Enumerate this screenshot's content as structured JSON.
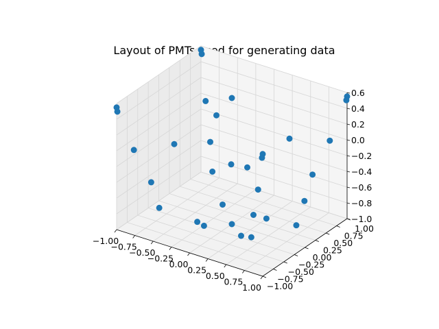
{
  "chart_data": {
    "type": "scatter",
    "projection": "3d",
    "title": "Layout of PMTs used for generating data",
    "xlabel": "",
    "ylabel": "",
    "zlabel": "",
    "xlim": [
      -1.0,
      1.0
    ],
    "ylim": [
      -1.0,
      1.0
    ],
    "zlim": [
      -1.0,
      0.6
    ],
    "grid": true,
    "x_ticks": [
      "−1.00",
      "−0.75",
      "−0.50",
      "−0.25",
      "0.00",
      "0.25",
      "0.50",
      "0.75",
      "1.00"
    ],
    "y_ticks": [
      "−1.00",
      "−0.75",
      "−0.50",
      "−0.25",
      "0.00",
      "0.25",
      "0.50",
      "0.75",
      "1.00"
    ],
    "z_ticks": [
      "−1.0",
      "−0.8",
      "−0.6",
      "−0.4",
      "−0.2",
      "0.0",
      "0.2",
      "0.4",
      "0.6"
    ],
    "x_tick_values": [
      -1.0,
      -0.75,
      -0.5,
      -0.25,
      0.0,
      0.25,
      0.5,
      0.75,
      1.0
    ],
    "y_tick_values": [
      -1.0,
      -0.75,
      -0.5,
      -0.25,
      0.0,
      0.25,
      0.5,
      0.75,
      1.0
    ],
    "z_tick_values": [
      -1.0,
      -0.8,
      -0.6,
      -0.4,
      -0.2,
      0.0,
      0.2,
      0.4,
      0.6
    ],
    "marker_color": "#1f77b4",
    "series": [
      {
        "points": [
          [
            -0.3,
            -0.3,
            -0.95
          ],
          [
            0.3,
            -0.3,
            -0.95
          ],
          [
            -0.3,
            0.3,
            -0.95
          ],
          [
            0.3,
            0.3,
            -0.95
          ],
          [
            -0.63,
            -0.63,
            -0.75
          ],
          [
            0.63,
            -0.63,
            -0.75
          ],
          [
            -0.63,
            0.63,
            -0.75
          ],
          [
            0.63,
            0.63,
            -0.75
          ],
          [
            0.0,
            -0.66,
            -0.78
          ],
          [
            0.0,
            0.0,
            -1.0
          ],
          [
            0.94,
            -0.1,
            -0.7
          ],
          [
            -0.5,
            0.85,
            -0.7
          ],
          [
            -0.7,
            -0.7,
            -0.42
          ],
          [
            0.7,
            -0.7,
            -0.42
          ],
          [
            -0.7,
            0.7,
            -0.42
          ],
          [
            0.7,
            0.7,
            -0.42
          ],
          [
            -0.85,
            -0.85,
            0.0
          ],
          [
            0.85,
            -0.85,
            0.0
          ],
          [
            -0.85,
            0.85,
            0.0
          ],
          [
            0.85,
            0.85,
            0.0
          ],
          [
            -0.5,
            -0.5,
            0.05
          ],
          [
            0.5,
            -0.5,
            0.05
          ],
          [
            -0.5,
            0.5,
            0.05
          ],
          [
            0.5,
            0.5,
            0.05
          ],
          [
            -1.0,
            -1.0,
            0.55
          ],
          [
            1.0,
            -1.0,
            0.55
          ],
          [
            -1.0,
            1.0,
            0.55
          ],
          [
            1.0,
            1.0,
            0.55
          ],
          [
            -0.99,
            -1.0,
            0.5
          ],
          [
            0.99,
            -1.0,
            0.5
          ],
          [
            -0.99,
            1.0,
            0.5
          ],
          [
            0.99,
            1.0,
            0.5
          ],
          [
            0.0,
            0.0,
            0.6
          ]
        ]
      }
    ]
  }
}
